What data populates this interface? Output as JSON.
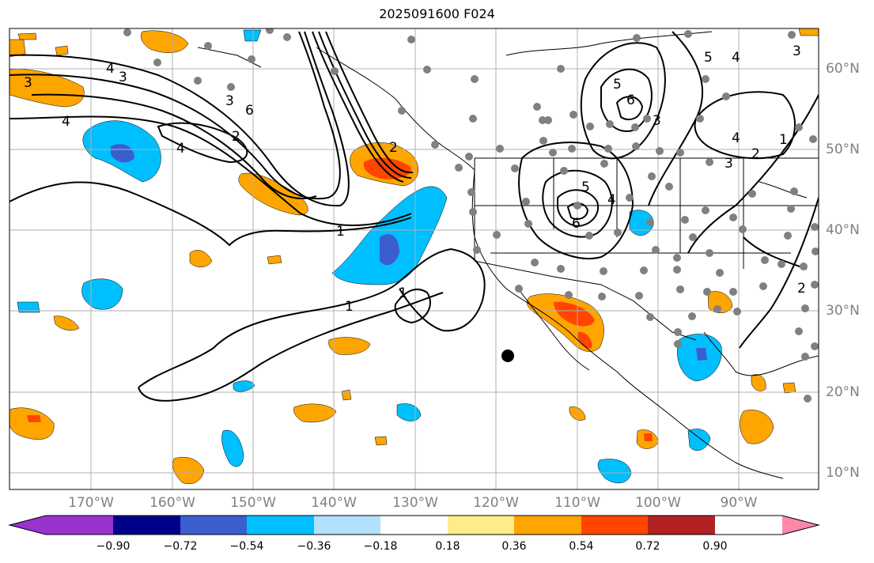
{
  "title": "2025091600 F024",
  "longitude_labels": [
    "170°W",
    "160°W",
    "150°W",
    "140°W",
    "130°W",
    "120°W",
    "110°W",
    "100°W",
    "90°W"
  ],
  "latitude_labels": [
    "60°N",
    "50°N",
    "40°N",
    "30°N",
    "20°N",
    "10°N"
  ],
  "colorbar": {
    "ticks": [
      "−0.90",
      "−0.72",
      "−0.54",
      "−0.36",
      "−0.18",
      "0.18",
      "0.36",
      "0.54",
      "0.72",
      "0.90"
    ],
    "colors": [
      "#9a32cd",
      "#00008b",
      "#3a5fcd",
      "#00bfff",
      "#b0e2ff",
      "#ffffff",
      "#ffec8b",
      "#ffa500",
      "#ff4500",
      "#b22222",
      "#ff88aa"
    ]
  },
  "contour_labels": [
    "3",
    "3",
    "4",
    "4",
    "3",
    "2",
    "6",
    "4",
    "1",
    "1",
    "1",
    "5",
    "4",
    "6",
    "5",
    "6",
    "3",
    "4",
    "1",
    "2",
    "2",
    "3",
    "5",
    "4",
    "3",
    "2"
  ],
  "colors": {
    "land_outline": "#000000",
    "grid": "#b0b0b0",
    "station_dot": "#808080",
    "marker": "#000000"
  }
}
